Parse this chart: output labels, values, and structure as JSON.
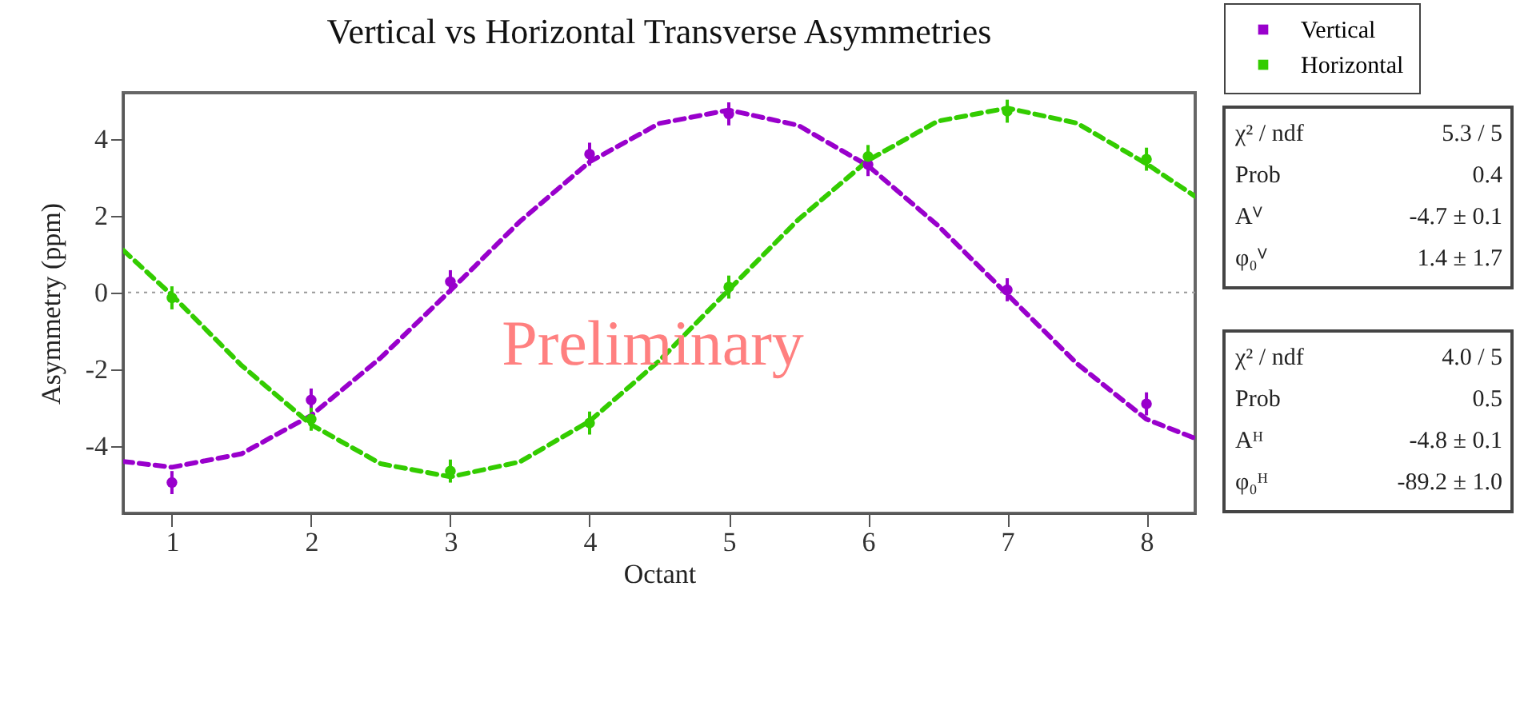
{
  "chart_data": {
    "type": "scatter",
    "title": "Vertical vs Horizontal Transverse Asymmetries",
    "xlabel": "Octant",
    "ylabel": "Asymmetry (ppm)",
    "x": [
      1,
      2,
      3,
      4,
      5,
      6,
      7,
      8
    ],
    "series": [
      {
        "name": "Vertical",
        "color": "#9900cc",
        "marker": "circle",
        "values": [
          -4.95,
          -2.8,
          0.28,
          3.6,
          4.65,
          3.33,
          0.07,
          -2.9
        ],
        "errors": [
          0.3,
          0.3,
          0.3,
          0.3,
          0.3,
          0.3,
          0.3,
          0.3
        ]
      },
      {
        "name": "Horizontal",
        "color": "#33cc00",
        "marker": "circle",
        "values": [
          -0.14,
          -3.3,
          -4.65,
          -3.4,
          0.14,
          3.54,
          4.72,
          3.47
        ],
        "errors": [
          0.3,
          0.3,
          0.3,
          0.3,
          0.3,
          0.3,
          0.3,
          0.3
        ]
      },
      {
        "type": "line",
        "color": "#9900cc",
        "line_style": "dashed",
        "x": [
          0.65,
          1,
          1.5,
          2,
          2.5,
          3,
          3.5,
          4,
          4.5,
          5,
          5.5,
          6,
          6.5,
          7,
          7.5,
          8,
          8.35
        ],
        "values": [
          -4.4,
          -4.55,
          -4.2,
          -3.2,
          -1.7,
          0.05,
          1.85,
          3.4,
          4.4,
          4.75,
          4.35,
          3.3,
          1.75,
          -0.05,
          -1.85,
          -3.3,
          -3.8
        ]
      },
      {
        "type": "line",
        "color": "#33cc00",
        "line_style": "dashed",
        "x": [
          0.65,
          1,
          1.5,
          2,
          2.5,
          3,
          3.5,
          4,
          4.5,
          5,
          5.5,
          6,
          6.5,
          7,
          7.5,
          8,
          8.35
        ],
        "values": [
          1.1,
          -0.07,
          -1.9,
          -3.44,
          -4.46,
          -4.8,
          -4.41,
          -3.35,
          -1.78,
          0.07,
          1.9,
          3.44,
          4.46,
          4.8,
          4.41,
          3.35,
          2.5
        ]
      }
    ],
    "xlim": [
      0.65,
      8.35
    ],
    "ylim": [
      -5.75,
      5.2
    ],
    "xticks": [
      1,
      2,
      3,
      4,
      5,
      6,
      7,
      8
    ],
    "yticks": [
      -4,
      -2,
      0,
      2,
      4
    ],
    "ref_lines": [
      {
        "axis": "y",
        "value": 0,
        "color": "#999999",
        "line_style": "dotted"
      }
    ],
    "legend": "top right",
    "annotations": [
      "Preliminary",
      "χ² / ndf",
      "5.3 / 5",
      "Prob",
      "0.4",
      "Aⱽ",
      "-4.7 ±  0.1",
      "φ₀ⱽ",
      "1.4 ±  1.7",
      "χ² / ndf",
      "4.0 / 5",
      "Prob",
      "0.5",
      "Aᴴ",
      "-4.8 ±  0.1",
      "φ₀ᴴ",
      "-89.2 ±  1.0"
    ]
  }
}
